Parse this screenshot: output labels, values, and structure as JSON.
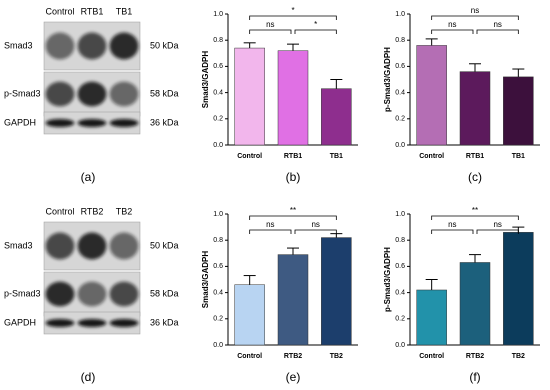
{
  "blots": [
    {
      "caption": "(a)",
      "lanes": [
        "Control",
        "RTB1",
        "TB1"
      ],
      "rows": [
        {
          "protein": "Smad3",
          "size": "50 kDa"
        },
        {
          "protein": "p-Smad3",
          "size": "58 kDa"
        },
        {
          "protein": "GAPDH",
          "size": "36 kDa"
        }
      ]
    },
    {
      "caption": "(d)",
      "lanes": [
        "Control",
        "RTB2",
        "TB2"
      ],
      "rows": [
        {
          "protein": "Smad3",
          "size": "50 kDa"
        },
        {
          "protein": "p-Smad3",
          "size": "58 kDa"
        },
        {
          "protein": "GAPDH",
          "size": "36 kDa"
        }
      ]
    }
  ],
  "chart_data": [
    {
      "type": "bar",
      "caption": "(b)",
      "y_label": "Smad3/GADPH",
      "categories": [
        "Control",
        "RTB1",
        "TB1"
      ],
      "values": [
        0.74,
        0.72,
        0.43
      ],
      "errors": [
        0.04,
        0.05,
        0.07
      ],
      "colors": [
        "#f2b6ec",
        "#e070e4",
        "#8e2e8e"
      ],
      "ylim": [
        0,
        1
      ],
      "yticks": [
        {
          "value": 0,
          "label": "0.0"
        },
        0.2,
        0.4,
        0.6,
        0.8,
        {
          "value": 1,
          "label": "1.0"
        }
      ],
      "annotations": [
        "ns",
        "*",
        "*"
      ]
    },
    {
      "type": "bar",
      "caption": "(c)",
      "y_label": "p-Smad3/GADPH",
      "categories": [
        "Control",
        "RTB1",
        "TB1"
      ],
      "values": [
        0.76,
        0.56,
        0.52
      ],
      "errors": [
        0.05,
        0.06,
        0.06
      ],
      "colors": [
        "#b46eb4",
        "#5c1a5c",
        "#3c103c"
      ],
      "ylim": [
        0,
        1
      ],
      "yticks": [
        {
          "value": 0,
          "label": "0.0"
        },
        0.2,
        0.4,
        0.6,
        0.8,
        {
          "value": 1,
          "label": "1.0"
        }
      ],
      "annotations": [
        "ns",
        "ns",
        "ns"
      ]
    },
    {
      "type": "bar",
      "caption": "(e)",
      "y_label": "Smad3/GADPH",
      "categories": [
        "Control",
        "RTB2",
        "TB2"
      ],
      "values": [
        0.46,
        0.69,
        0.82
      ],
      "errors": [
        0.07,
        0.05,
        0.03
      ],
      "colors": [
        "#b8d4f2",
        "#3e5a82",
        "#1c3e6c"
      ],
      "ylim": [
        0,
        1
      ],
      "yticks": [
        {
          "value": 0,
          "label": "0.0"
        },
        0.2,
        0.4,
        0.6,
        0.8,
        {
          "value": 1,
          "label": "1.0"
        }
      ],
      "annotations": [
        "ns",
        "ns",
        "**"
      ]
    },
    {
      "type": "bar",
      "caption": "(f)",
      "y_label": "p-Smad3/GADPH",
      "categories": [
        "Control",
        "RTB2",
        "TB2"
      ],
      "values": [
        0.42,
        0.63,
        0.86
      ],
      "errors": [
        0.08,
        0.06,
        0.04
      ],
      "colors": [
        "#2292aa",
        "#1c607c",
        "#0c3c5c"
      ],
      "ylim": [
        0,
        1
      ],
      "yticks": [
        {
          "value": 0,
          "label": "0.0"
        },
        0.2,
        0.4,
        0.6,
        0.8,
        {
          "value": 1,
          "label": "1.0"
        }
      ],
      "annotations": [
        "ns",
        "ns",
        "**"
      ]
    }
  ]
}
